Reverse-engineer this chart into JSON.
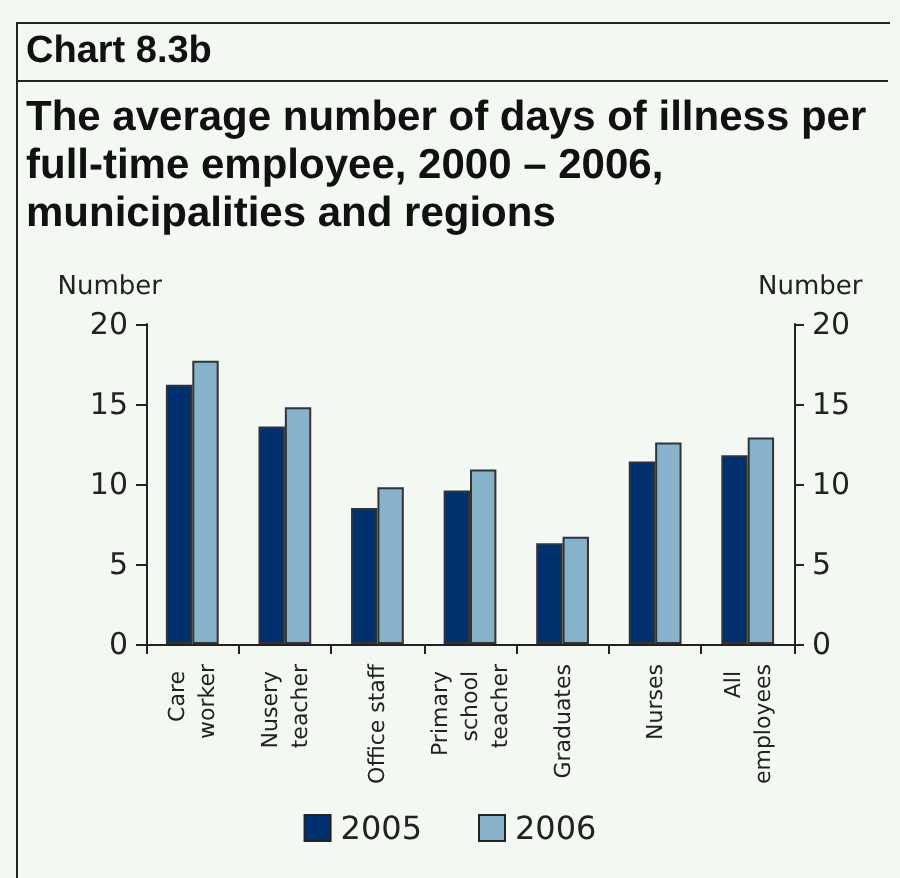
{
  "chart_data": {
    "type": "bar",
    "title": "Chart 8.3b",
    "subtitle": "The average number of days of illness per full-time employee, 2000 – 2006, municipalities and regions",
    "ylabel": "Number",
    "y2label": "Number",
    "categories": [
      "Care worker",
      "Nusery teacher",
      "Office staff",
      "Primary school teacher",
      "Graduates",
      "Nurses",
      "All employees"
    ],
    "series": [
      {
        "name": "2005",
        "color": "#00306e",
        "values": [
          16.2,
          13.6,
          8.5,
          9.6,
          6.3,
          11.4,
          11.8
        ]
      },
      {
        "name": "2006",
        "color": "#86b2cc",
        "values": [
          17.7,
          14.8,
          9.8,
          10.9,
          6.7,
          12.6,
          12.9
        ]
      }
    ],
    "ylim": [
      0,
      20
    ],
    "yticks": [
      0,
      5,
      10,
      15,
      20
    ],
    "y2lim": [
      0,
      20
    ],
    "y2ticks": [
      0,
      5,
      10,
      15,
      20
    ],
    "legend": "bottom",
    "grid": false
  }
}
